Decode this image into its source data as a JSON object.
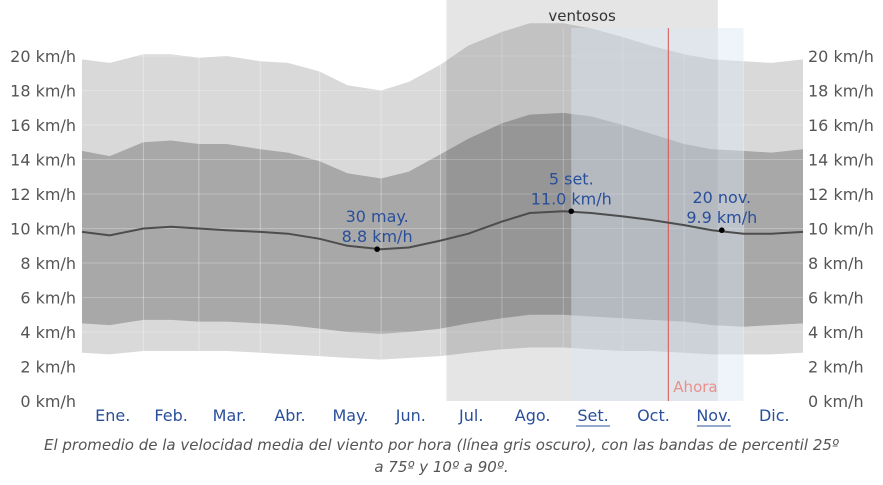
{
  "chart_data": {
    "type": "area",
    "title": "",
    "xlabel": "",
    "ylabel": "",
    "unit": "km/h",
    "ylim": [
      0,
      21
    ],
    "yticks": [
      0,
      2,
      4,
      6,
      8,
      10,
      12,
      14,
      16,
      18,
      20
    ],
    "ytick_labels": [
      "0 km/h",
      "2 km/h",
      "4 km/h",
      "6 km/h",
      "8 km/h",
      "10 km/h",
      "12 km/h",
      "14 km/h",
      "16 km/h",
      "18 km/h",
      "20 km/h"
    ],
    "months": [
      "Ene.",
      "Feb.",
      "Mar.",
      "Abr.",
      "May.",
      "Jun.",
      "Jul.",
      "Ago.",
      "Set.",
      "Oct.",
      "Nov.",
      "Dic."
    ],
    "x_days": [
      1,
      15,
      32,
      46,
      60,
      74,
      91,
      105,
      121,
      135,
      152,
      166,
      182,
      196,
      213,
      227,
      244,
      258,
      274,
      288,
      305,
      319,
      335,
      349,
      365
    ],
    "series": [
      {
        "key": "p90",
        "values": [
          19.8,
          19.6,
          20.1,
          20.1,
          19.9,
          20.0,
          19.7,
          19.6,
          19.1,
          18.3,
          18.0,
          18.5,
          19.5,
          20.6,
          21.4,
          21.9,
          21.9,
          21.6,
          21.1,
          20.6,
          20.1,
          19.8,
          19.7,
          19.6,
          19.8
        ]
      },
      {
        "key": "p75",
        "values": [
          14.5,
          14.2,
          15.0,
          15.1,
          14.9,
          14.9,
          14.6,
          14.4,
          13.9,
          13.2,
          12.9,
          13.3,
          14.3,
          15.2,
          16.1,
          16.6,
          16.7,
          16.5,
          16.0,
          15.5,
          14.9,
          14.6,
          14.5,
          14.4,
          14.6
        ]
      },
      {
        "key": "average",
        "values": [
          9.8,
          9.6,
          10.0,
          10.1,
          10.0,
          9.9,
          9.8,
          9.7,
          9.4,
          9.0,
          8.8,
          8.9,
          9.3,
          9.7,
          10.4,
          10.9,
          11.0,
          10.9,
          10.7,
          10.5,
          10.2,
          9.9,
          9.7,
          9.7,
          9.8
        ]
      },
      {
        "key": "p25",
        "values": [
          4.5,
          4.4,
          4.7,
          4.7,
          4.6,
          4.6,
          4.5,
          4.4,
          4.2,
          4.0,
          3.9,
          4.0,
          4.2,
          4.5,
          4.8,
          5.0,
          5.0,
          4.9,
          4.8,
          4.7,
          4.6,
          4.4,
          4.3,
          4.4,
          4.5
        ]
      },
      {
        "key": "p10",
        "values": [
          2.8,
          2.7,
          2.9,
          2.9,
          2.9,
          2.9,
          2.8,
          2.7,
          2.6,
          2.5,
          2.4,
          2.5,
          2.6,
          2.8,
          3.0,
          3.1,
          3.1,
          3.0,
          2.9,
          2.9,
          2.8,
          2.7,
          2.7,
          2.7,
          2.8
        ]
      }
    ],
    "annotations": [
      {
        "day": 150,
        "value": 8.8,
        "date": "30 may.",
        "speed": "8.8 km/h"
      },
      {
        "day": 248,
        "value": 11.0,
        "date": "5 set.",
        "speed": "11.0 km/h"
      },
      {
        "day": 324,
        "value": 9.9,
        "date": "20 nov.",
        "speed": "9.9 km/h"
      }
    ],
    "windy_season": {
      "label": "ventosos",
      "start_day": 185,
      "end_day": 322
    },
    "highlight_range": {
      "start_day": 248,
      "end_day": 335
    },
    "now": {
      "label": "Ahora",
      "day": 297
    },
    "caption": "El promedio de la velocidad media del viento por hora (línea gris oscuro), con las bandas de percentil 25º a 75º y 10º a 90º.",
    "colors": {
      "outer_band": "#d9d9d9",
      "inner_band": "#a8a8a8",
      "average_line": "#4d4d4d",
      "windy_shade": "#000000",
      "highlight": "#dbe6f5",
      "now_line": "#d9534f",
      "annotation_text": "#2a4f9a",
      "month_label": "#2a4f9a",
      "axis_label": "#555555",
      "grid": "#cccccc"
    }
  }
}
